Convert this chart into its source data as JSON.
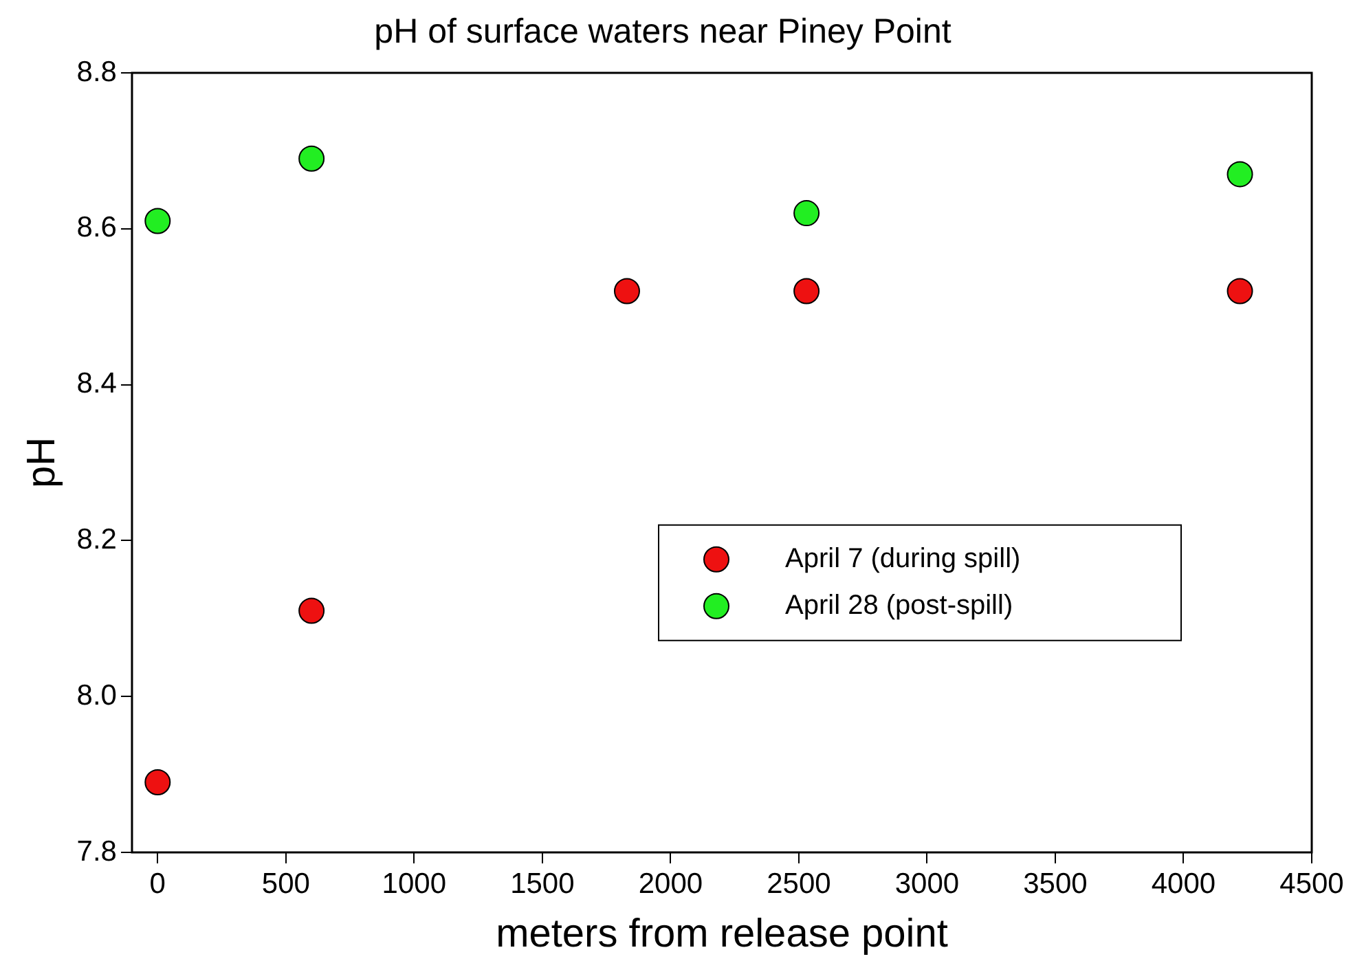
{
  "chart_data": {
    "type": "scatter",
    "title": "pH of surface waters near Piney Point",
    "xlabel": "meters from release point",
    "ylabel": "pH",
    "series": [
      {
        "name": "April 7 (during spill)",
        "color": "#ee1111",
        "x": [
          0,
          600,
          1830,
          2530,
          4220
        ],
        "values": [
          7.89,
          8.11,
          8.52,
          8.52,
          8.52
        ]
      },
      {
        "name": "April 28 (post-spill)",
        "color": "#22ee22",
        "x": [
          0,
          600,
          2530,
          4220
        ],
        "values": [
          8.61,
          8.69,
          8.62,
          8.67
        ]
      }
    ],
    "xlim": [
      -100,
      4500
    ],
    "xticks": [
      0,
      500,
      1000,
      1500,
      2000,
      2500,
      3000,
      3500,
      4000,
      4500
    ],
    "ylim": [
      7.8,
      8.8
    ],
    "yticks": [
      {
        "value": 7.8,
        "label": "7.8"
      },
      {
        "value": 8.0,
        "label": "8.0"
      },
      {
        "value": 8.2,
        "label": "8.2"
      },
      {
        "value": 8.4,
        "label": "8.4"
      },
      {
        "value": 8.6,
        "label": "8.6"
      },
      {
        "value": 8.8,
        "label": "8.8"
      }
    ],
    "grid": false,
    "legend": "right",
    "marker": "circle"
  }
}
